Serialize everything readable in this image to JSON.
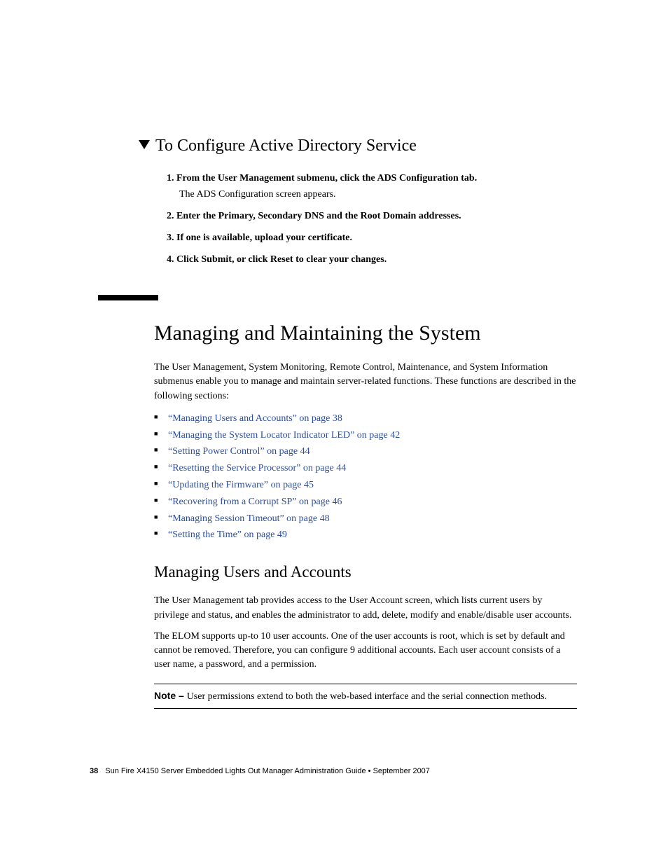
{
  "proc_heading": "To Configure Active Directory Service",
  "steps": [
    {
      "num": "1.",
      "bold": "From the User Management submenu, click the ADS Configuration tab.",
      "sub": "The ADS Configuration screen appears."
    },
    {
      "num": "2.",
      "bold": "Enter the Primary, Secondary DNS and the Root Domain addresses.",
      "sub": ""
    },
    {
      "num": "3.",
      "bold": "If one is available, upload your certificate.",
      "sub": ""
    },
    {
      "num": "4.",
      "bold": "Click Submit, or click Reset to clear your changes.",
      "sub": ""
    }
  ],
  "h1": "Managing and Maintaining the System",
  "intro": "The User Management, System Monitoring, Remote Control, Maintenance, and System Information submenus enable you to manage and maintain server-related functions. These functions are described in the following sections:",
  "bullets": [
    "“Managing Users and Accounts” on page 38",
    "“Managing the System Locator Indicator LED” on page 42",
    "“Setting Power Control” on page 44",
    "“Resetting the Service Processor” on page 44",
    "“Updating the Firmware” on page 45",
    "“Recovering from a Corrupt SP” on page 46",
    "“Managing Session Timeout” on page 48",
    "“Setting the Time” on page 49"
  ],
  "h2": "Managing Users and Accounts",
  "para1": "The User Management tab provides access to the User Account screen, which lists current users by privilege and status, and enables the administrator to add, delete, modify and enable/disable user accounts.",
  "para2": "The ELOM supports up-to 10 user accounts. One of the user accounts is root, which is set by default and cannot be removed. Therefore, you can configure 9 additional accounts. Each user account consists of a user name, a password, and a permission.",
  "note_label": "Note – ",
  "note_body": "User permissions extend to both the web-based interface and the serial connection methods.",
  "footer_page": "38",
  "footer_text": "Sun Fire X4150 Server Embedded Lights Out Manager Administration Guide • September 2007",
  "colors": {
    "link": "#2a4ea0",
    "text": "#000000",
    "bg": "#ffffff"
  }
}
